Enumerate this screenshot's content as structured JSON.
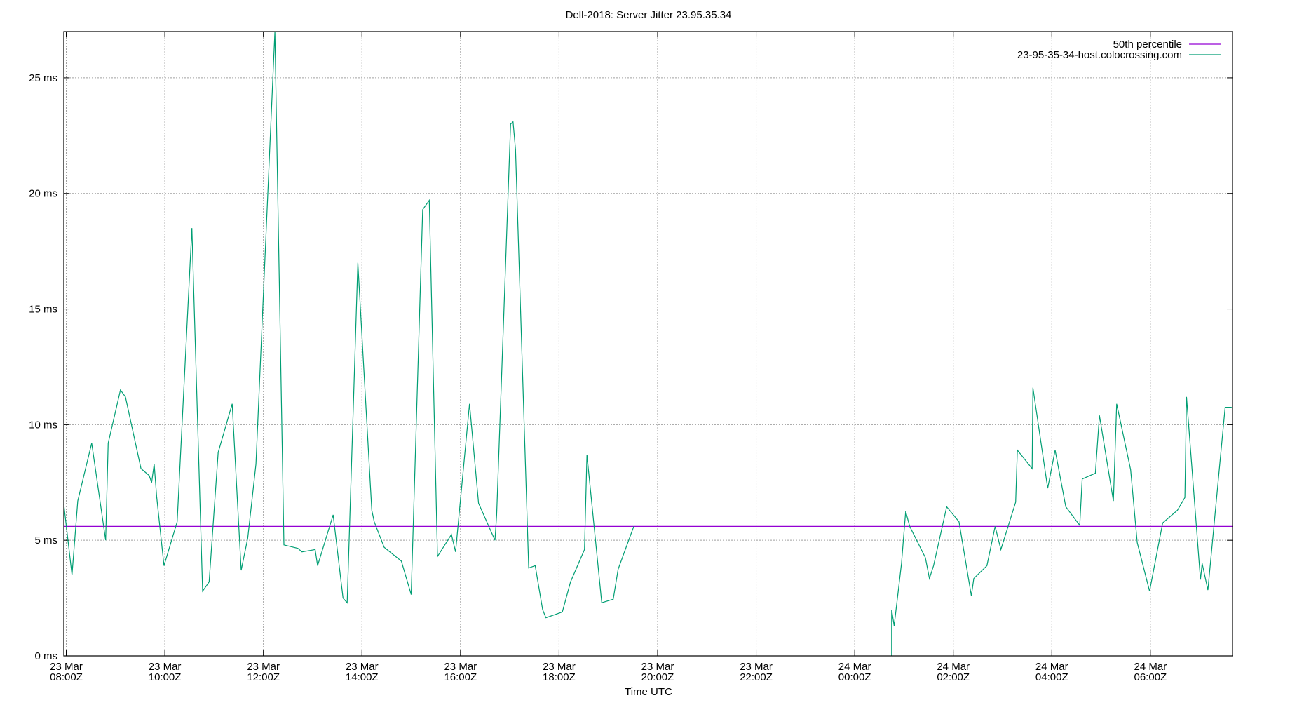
{
  "chart_data": {
    "type": "line",
    "title": "Dell-2018: Server Jitter 23.95.35.34",
    "xlabel": "Time UTC",
    "ylabel": "",
    "xlim": [
      "23 Mar 07:57",
      "24 Mar 07:40"
    ],
    "ylim": [
      0,
      27
    ],
    "grid": true,
    "legend_position": "top-right",
    "x_ticks": [
      {
        "day": "23 Mar",
        "time": "08:00Z",
        "at": "23 Mar 08:00"
      },
      {
        "day": "23 Mar",
        "time": "10:00Z",
        "at": "23 Mar 10:00"
      },
      {
        "day": "23 Mar",
        "time": "12:00Z",
        "at": "23 Mar 12:00"
      },
      {
        "day": "23 Mar",
        "time": "14:00Z",
        "at": "23 Mar 14:00"
      },
      {
        "day": "23 Mar",
        "time": "16:00Z",
        "at": "23 Mar 16:00"
      },
      {
        "day": "23 Mar",
        "time": "18:00Z",
        "at": "23 Mar 18:00"
      },
      {
        "day": "23 Mar",
        "time": "20:00Z",
        "at": "23 Mar 20:00"
      },
      {
        "day": "23 Mar",
        "time": "22:00Z",
        "at": "23 Mar 22:00"
      },
      {
        "day": "24 Mar",
        "time": "00:00Z",
        "at": "24 Mar 00:00"
      },
      {
        "day": "24 Mar",
        "time": "02:00Z",
        "at": "24 Mar 02:00"
      },
      {
        "day": "24 Mar",
        "time": "04:00Z",
        "at": "24 Mar 04:00"
      },
      {
        "day": "24 Mar",
        "time": "06:00Z",
        "at": "24 Mar 06:00"
      }
    ],
    "y_ticks": [
      {
        "label": "0 ms",
        "value": 0
      },
      {
        "label": "5 ms",
        "value": 5
      },
      {
        "label": "10 ms",
        "value": 10
      },
      {
        "label": "15 ms",
        "value": 15
      },
      {
        "label": "20 ms",
        "value": 20
      },
      {
        "label": "25 ms",
        "value": 25
      }
    ],
    "series": [
      {
        "name": "50th percentile",
        "color": "#9400d3",
        "constant": 5.6
      },
      {
        "name": "23-95-35-34-host.colocrossing.com",
        "color": "#009e73",
        "points": [
          [
            "23 Mar 07:57",
            6.55
          ],
          [
            "23 Mar 08:07",
            3.5
          ],
          [
            "23 Mar 08:14",
            6.7
          ],
          [
            "23 Mar 08:31",
            9.2
          ],
          [
            "23 Mar 08:48",
            5.0
          ],
          [
            "23 Mar 08:51",
            9.2
          ],
          [
            "23 Mar 09:06",
            11.5
          ],
          [
            "23 Mar 09:12",
            11.2
          ],
          [
            "23 Mar 09:31",
            8.1
          ],
          [
            "23 Mar 09:41",
            7.8
          ],
          [
            "23 Mar 09:44",
            7.5
          ],
          [
            "23 Mar 09:47",
            8.3
          ],
          [
            "23 Mar 09:50",
            6.9
          ],
          [
            "23 Mar 09:59",
            3.9
          ],
          [
            "23 Mar 10:15",
            5.8
          ],
          [
            "23 Mar 10:33",
            18.5
          ],
          [
            "23 Mar 10:46",
            2.8
          ],
          [
            "23 Mar 10:54",
            3.2
          ],
          [
            "23 Mar 11:05",
            8.8
          ],
          [
            "23 Mar 11:22",
            10.9
          ],
          [
            "23 Mar 11:33",
            3.7
          ],
          [
            "23 Mar 11:41",
            5.1
          ],
          [
            "23 Mar 11:51",
            8.3
          ],
          [
            "23 Mar 12:14",
            27.0
          ],
          [
            "23 Mar 12:25",
            4.8
          ],
          [
            "23 Mar 12:42",
            4.65
          ],
          [
            "23 Mar 12:47",
            4.5
          ],
          [
            "23 Mar 13:03",
            4.6
          ],
          [
            "23 Mar 13:06",
            3.9
          ],
          [
            "23 Mar 13:25",
            6.1
          ],
          [
            "23 Mar 13:37",
            2.5
          ],
          [
            "23 Mar 13:42",
            2.3
          ],
          [
            "23 Mar 13:55",
            17.0
          ],
          [
            "23 Mar 14:12",
            6.3
          ],
          [
            "23 Mar 14:15",
            5.8
          ],
          [
            "23 Mar 14:27",
            4.7
          ],
          [
            "23 Mar 14:48",
            4.1
          ],
          [
            "23 Mar 15:00",
            2.65
          ],
          [
            "23 Mar 15:14",
            19.3
          ],
          [
            "23 Mar 15:22",
            19.7
          ],
          [
            "23 Mar 15:32",
            4.3
          ],
          [
            "23 Mar 15:49",
            5.25
          ],
          [
            "23 Mar 15:54",
            4.5
          ],
          [
            "23 Mar 16:11",
            10.9
          ],
          [
            "23 Mar 16:22",
            6.6
          ],
          [
            "23 Mar 16:42",
            5.0
          ],
          [
            "23 Mar 16:44",
            6.1
          ],
          [
            "23 Mar 17:01",
            23.0
          ],
          [
            "23 Mar 17:04",
            23.1
          ],
          [
            "23 Mar 17:07",
            21.9
          ],
          [
            "23 Mar 17:23",
            3.8
          ],
          [
            "23 Mar 17:31",
            3.9
          ],
          [
            "23 Mar 17:40",
            2.0
          ],
          [
            "23 Mar 17:44",
            1.65
          ],
          [
            "23 Mar 18:04",
            1.9
          ],
          [
            "23 Mar 18:14",
            3.2
          ],
          [
            "23 Mar 18:31",
            4.6
          ],
          [
            "23 Mar 18:34",
            8.7
          ],
          [
            "23 Mar 18:52",
            2.3
          ],
          [
            "23 Mar 19:06",
            2.45
          ],
          [
            "23 Mar 19:12",
            3.75
          ],
          [
            "23 Mar 19:31",
            5.6
          ],
          [
            "24 Mar 00:45",
            0
          ],
          [
            "24 Mar 00:45",
            2.0
          ],
          [
            "24 Mar 00:48",
            1.3
          ],
          [
            "24 Mar 00:57",
            4.0
          ],
          [
            "24 Mar 01:02",
            6.25
          ],
          [
            "24 Mar 01:07",
            5.6
          ],
          [
            "24 Mar 01:26",
            4.25
          ],
          [
            "24 Mar 01:31",
            3.35
          ],
          [
            "24 Mar 01:36",
            3.9
          ],
          [
            "24 Mar 01:52",
            6.45
          ],
          [
            "24 Mar 02:07",
            5.8
          ],
          [
            "24 Mar 02:22",
            2.6
          ],
          [
            "24 Mar 02:25",
            3.35
          ],
          [
            "24 Mar 02:41",
            3.9
          ],
          [
            "24 Mar 02:51",
            5.6
          ],
          [
            "24 Mar 02:58",
            4.6
          ],
          [
            "24 Mar 03:16",
            6.65
          ],
          [
            "24 Mar 03:18",
            8.9
          ],
          [
            "24 Mar 03:36",
            8.1
          ],
          [
            "24 Mar 03:37",
            11.6
          ],
          [
            "24 Mar 03:55",
            7.25
          ],
          [
            "24 Mar 04:04",
            8.9
          ],
          [
            "24 Mar 04:17",
            6.45
          ],
          [
            "24 Mar 04:34",
            5.65
          ],
          [
            "24 Mar 04:37",
            7.65
          ],
          [
            "24 Mar 04:53",
            7.9
          ],
          [
            "24 Mar 04:58",
            10.4
          ],
          [
            "24 Mar 05:15",
            6.7
          ],
          [
            "24 Mar 05:19",
            10.9
          ],
          [
            "24 Mar 05:36",
            8.05
          ],
          [
            "24 Mar 05:44",
            4.9
          ],
          [
            "24 Mar 05:59",
            2.8
          ],
          [
            "24 Mar 06:15",
            5.75
          ],
          [
            "24 Mar 06:33",
            6.3
          ],
          [
            "24 Mar 06:42",
            6.85
          ],
          [
            "24 Mar 06:44",
            11.2
          ],
          [
            "24 Mar 07:01",
            3.3
          ],
          [
            "24 Mar 07:03",
            4.0
          ],
          [
            "24 Mar 07:10",
            2.85
          ],
          [
            "24 Mar 07:31",
            10.75
          ],
          [
            "24 Mar 07:39",
            10.75
          ]
        ]
      }
    ]
  }
}
